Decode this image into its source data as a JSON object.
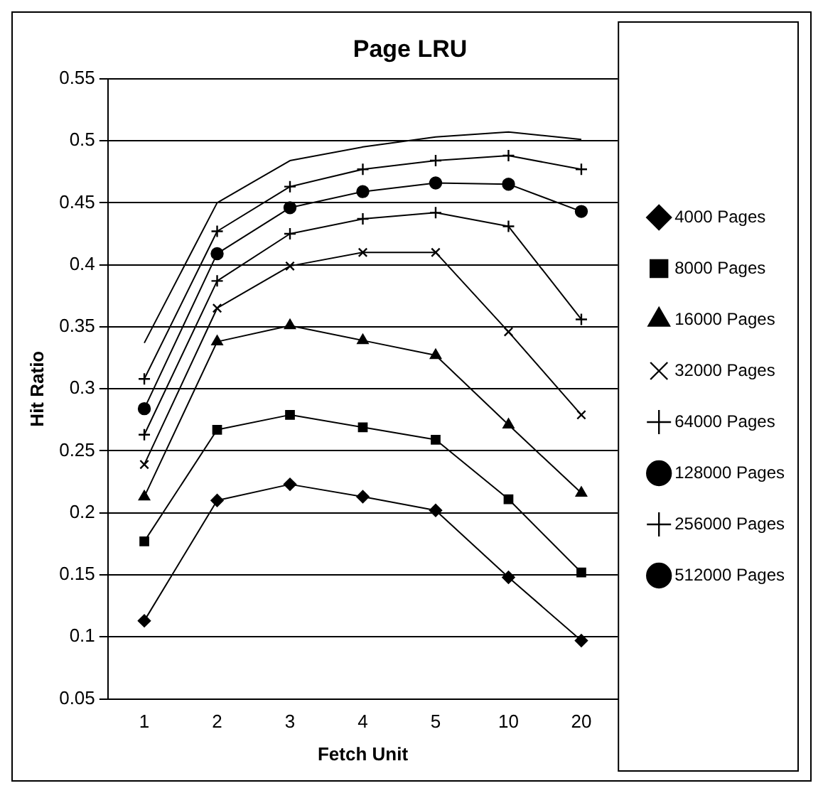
{
  "chart_data": {
    "type": "line",
    "title": "Page LRU",
    "xlabel": "Fetch Unit",
    "ylabel": "Hit Ratio",
    "categories": [
      "1",
      "2",
      "3",
      "4",
      "5",
      "10",
      "20"
    ],
    "ylim": [
      0.05,
      0.55
    ],
    "yticks": [
      0.05,
      0.1,
      0.15,
      0.2,
      0.25,
      0.3,
      0.35,
      0.4,
      0.45,
      0.5,
      0.55
    ],
    "grid": "y",
    "legend": "right",
    "series": [
      {
        "name": "4000 Pages",
        "color": "#000000",
        "marker": "diamond",
        "values": [
          0.113,
          0.21,
          0.223,
          0.213,
          0.202,
          0.148,
          0.097
        ]
      },
      {
        "name": "8000 Pages",
        "color": "#000000",
        "marker": "square",
        "values": [
          0.177,
          0.267,
          0.279,
          0.269,
          0.259,
          0.211,
          0.152
        ]
      },
      {
        "name": "16000 Pages",
        "color": "#000000",
        "marker": "triangle",
        "values": [
          0.213,
          0.338,
          0.351,
          0.339,
          0.327,
          0.271,
          0.216
        ]
      },
      {
        "name": "32000 Pages",
        "color": "#000000",
        "marker": "x",
        "values": [
          0.239,
          0.365,
          0.399,
          0.41,
          0.41,
          0.346,
          0.279
        ]
      },
      {
        "name": "64000 Pages",
        "color": "#000000",
        "marker": "cross",
        "values": [
          0.263,
          0.387,
          0.425,
          0.437,
          0.442,
          0.431,
          0.356
        ]
      },
      {
        "name": "128000 Pages",
        "color": "#000000",
        "marker": "circle",
        "values": [
          0.284,
          0.409,
          0.446,
          0.459,
          0.466,
          0.465,
          0.443
        ]
      },
      {
        "name": "256000 Pages",
        "color": "#000000",
        "marker": "cross",
        "values": [
          0.308,
          0.427,
          0.463,
          0.477,
          0.484,
          0.488,
          0.477
        ]
      },
      {
        "name": "512000 Pages",
        "color": "#000000",
        "marker": "none",
        "values": [
          0.337,
          0.45,
          0.484,
          0.495,
          0.503,
          0.507,
          0.501
        ]
      }
    ]
  }
}
